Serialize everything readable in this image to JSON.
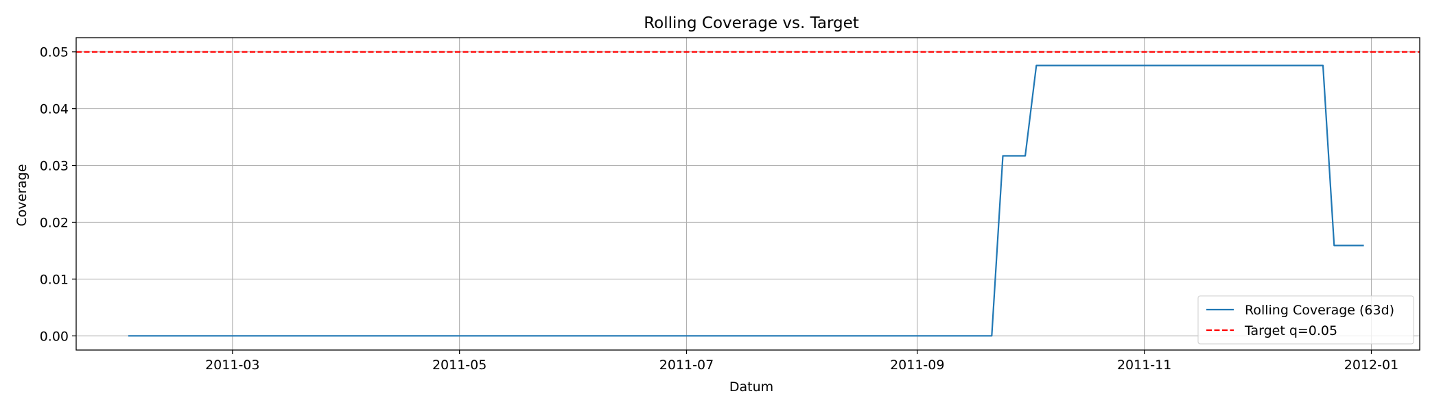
{
  "chart_data": {
    "type": "line",
    "title": "Rolling Coverage vs. Target",
    "xlabel": "Datum",
    "ylabel": "Coverage",
    "x_type": "date",
    "xlim": [
      "2011-01-18",
      "2012-01-14"
    ],
    "ylim": [
      -0.0025,
      0.0525
    ],
    "x_ticks": [
      "2011-03-01",
      "2011-05-01",
      "2011-07-01",
      "2011-09-01",
      "2011-11-01",
      "2012-01-01"
    ],
    "x_tick_labels": [
      "2011-03",
      "2011-05",
      "2011-07",
      "2011-09",
      "2011-11",
      "2012-01"
    ],
    "y_ticks": [
      0.0,
      0.01,
      0.02,
      0.03,
      0.04,
      0.05
    ],
    "y_tick_labels": [
      "0.00",
      "0.01",
      "0.02",
      "0.03",
      "0.04",
      "0.05"
    ],
    "grid": true,
    "legend_position": "lower right",
    "series": [
      {
        "name": "Rolling Coverage (63d)",
        "color": "#1f77b4",
        "style": "solid",
        "x": [
          "2011-02-01",
          "2011-09-21",
          "2011-09-24",
          "2011-09-30",
          "2011-10-03",
          "2011-12-19",
          "2011-12-22",
          "2011-12-30"
        ],
        "y": [
          0.0,
          0.0,
          0.0317,
          0.0317,
          0.0476,
          0.0476,
          0.0159,
          0.0159
        ]
      },
      {
        "name": "Target q=0.05",
        "color": "#ff0000",
        "style": "dashed",
        "hline": 0.05
      }
    ]
  }
}
